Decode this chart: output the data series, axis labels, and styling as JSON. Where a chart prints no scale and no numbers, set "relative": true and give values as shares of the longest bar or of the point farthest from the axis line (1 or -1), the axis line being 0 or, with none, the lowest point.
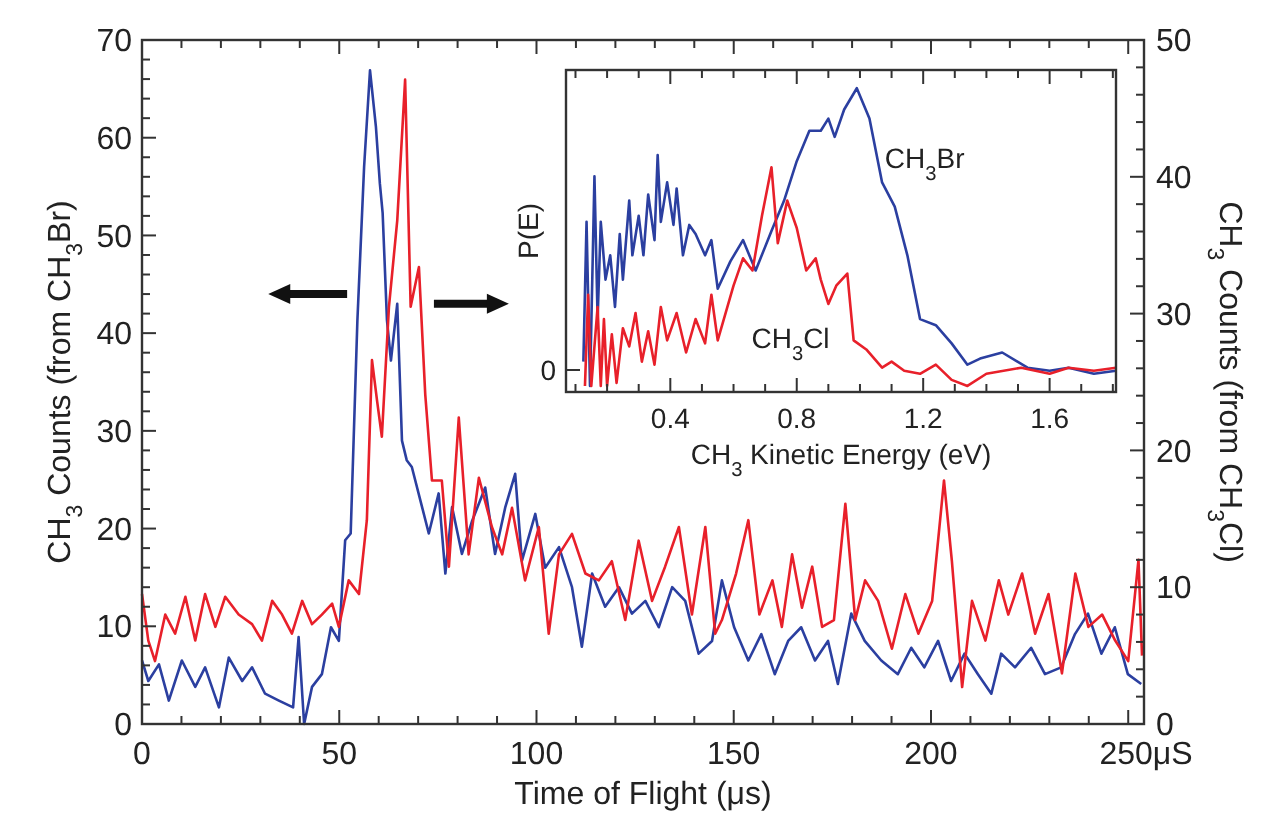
{
  "chart_data": [
    {
      "type": "line",
      "xlabel": "Time of Flight (μs)",
      "ylabel": "CH$_{3}$ Counts (from CH$_{3}$Br)",
      "y2label": "CH$_{3}$ Counts (from CH$_{3}$Cl)",
      "xlim": [
        0,
        254
      ],
      "xticks": [
        0,
        {
          "value": 10,
          "label": null
        },
        {
          "value": 20,
          "label": null
        },
        {
          "value": 30,
          "label": null
        },
        {
          "value": 40,
          "label": null
        },
        50,
        {
          "value": 60,
          "label": null
        },
        {
          "value": 70,
          "label": null
        },
        {
          "value": 80,
          "label": null
        },
        {
          "value": 90,
          "label": null
        },
        100,
        {
          "value": 110,
          "label": null
        },
        {
          "value": 120,
          "label": null
        },
        {
          "value": 130,
          "label": null
        },
        {
          "value": 140,
          "label": null
        },
        150,
        {
          "value": 160,
          "label": null
        },
        {
          "value": 170,
          "label": null
        },
        {
          "value": 180,
          "label": null
        },
        {
          "value": 190,
          "label": null
        },
        200,
        {
          "value": 210,
          "label": null
        },
        {
          "value": 220,
          "label": null
        },
        {
          "value": 230,
          "label": null
        },
        {
          "value": 240,
          "label": null
        },
        {
          "value": 250,
          "label": "250μS"
        }
      ],
      "ylim": [
        0,
        70
      ],
      "yticks": [
        0,
        {
          "value": 2,
          "label": null
        },
        {
          "value": 4,
          "label": null
        },
        {
          "value": 6,
          "label": null
        },
        {
          "value": 8,
          "label": null
        },
        10,
        {
          "value": 12,
          "label": null
        },
        {
          "value": 14,
          "label": null
        },
        {
          "value": 16,
          "label": null
        },
        {
          "value": 18,
          "label": null
        },
        20,
        {
          "value": 22,
          "label": null
        },
        {
          "value": 24,
          "label": null
        },
        {
          "value": 26,
          "label": null
        },
        {
          "value": 28,
          "label": null
        },
        30,
        {
          "value": 32,
          "label": null
        },
        {
          "value": 34,
          "label": null
        },
        {
          "value": 36,
          "label": null
        },
        {
          "value": 38,
          "label": null
        },
        40,
        {
          "value": 42,
          "label": null
        },
        {
          "value": 44,
          "label": null
        },
        {
          "value": 46,
          "label": null
        },
        {
          "value": 48,
          "label": null
        },
        50,
        {
          "value": 52,
          "label": null
        },
        {
          "value": 54,
          "label": null
        },
        {
          "value": 56,
          "label": null
        },
        {
          "value": 58,
          "label": null
        },
        60,
        {
          "value": 62,
          "label": null
        },
        {
          "value": 64,
          "label": null
        },
        {
          "value": 66,
          "label": null
        },
        {
          "value": 68,
          "label": null
        },
        70
      ],
      "y2lim": [
        0,
        50
      ],
      "y2ticks": [
        0,
        {
          "value": 2,
          "label": null
        },
        {
          "value": 4,
          "label": null
        },
        {
          "value": 6,
          "label": null
        },
        {
          "value": 8,
          "label": null
        },
        10,
        {
          "value": 12,
          "label": null
        },
        {
          "value": 14,
          "label": null
        },
        {
          "value": 16,
          "label": null
        },
        {
          "value": 18,
          "label": null
        },
        20,
        {
          "value": 22,
          "label": null
        },
        {
          "value": 24,
          "label": null
        },
        {
          "value": 26,
          "label": null
        },
        {
          "value": 28,
          "label": null
        },
        30,
        {
          "value": 32,
          "label": null
        },
        {
          "value": 34,
          "label": null
        },
        {
          "value": 36,
          "label": null
        },
        {
          "value": 38,
          "label": null
        },
        40,
        {
          "value": 42,
          "label": null
        },
        {
          "value": 44,
          "label": null
        },
        {
          "value": 46,
          "label": null
        },
        {
          "value": 48,
          "label": null
        },
        50
      ],
      "series": [
        {
          "color": "#2b3fa0",
          "x": [
            0,
            1.6,
            4.3,
            6.8,
            10.1,
            13.5,
            16,
            19.5,
            22,
            25.4,
            27.9,
            31.2,
            34.7,
            38.3,
            39.7,
            41.1,
            43.1,
            45.6,
            47.9,
            49.9,
            51.5,
            52.9,
            54.6,
            56.3,
            57.8,
            59.3,
            60.3,
            61,
            62.1,
            63.1,
            64.7,
            65.9,
            67.1,
            68.4,
            71,
            72.7,
            75.2,
            76.9,
            78.6,
            81.1,
            83.7,
            87,
            89.5,
            92.1,
            94.6,
            96.3,
            99.7,
            102.2,
            105.7,
            109,
            111.5,
            114.1,
            117.4,
            120.9,
            124.2,
            127.6,
            131,
            134.4,
            137.7,
            141.1,
            144.5,
            147,
            150.1,
            153.7,
            157,
            160.4,
            163.8,
            167.1,
            170.6,
            173.9,
            176.4,
            179.8,
            183.2,
            187.4,
            191.6,
            195,
            198.3,
            201.8,
            205.1,
            208.5,
            211.9,
            215.3,
            217.8,
            221.3,
            225.4,
            228.9,
            233,
            236.5,
            239.8,
            243.2,
            246.6,
            249.9,
            253.3
          ],
          "values": [
            6.5,
            4.4,
            6.1,
            2.4,
            6.5,
            3.8,
            5.8,
            1.7,
            6.8,
            4.4,
            5.8,
            3.1,
            2.4,
            1.7,
            8.9,
            0,
            3.8,
            5.1,
            9.9,
            8.5,
            18.8,
            19.5,
            41.3,
            57,
            66.9,
            61.1,
            55.3,
            52.3,
            41.3,
            37.2,
            43,
            29,
            27,
            26.3,
            22.2,
            19.5,
            23.6,
            15.4,
            22.2,
            17.4,
            20.8,
            24.2,
            17.4,
            22.2,
            25.6,
            16.7,
            21.5,
            16,
            18.1,
            14,
            7.9,
            15.4,
            12,
            14,
            11.3,
            12.6,
            9.9,
            14,
            12.6,
            7.2,
            8.5,
            14.7,
            9.9,
            6.5,
            9.2,
            5.1,
            8.5,
            9.9,
            6.5,
            8.5,
            4.1,
            11.3,
            8.5,
            6.5,
            5.1,
            7.8,
            5.8,
            8.5,
            4.4,
            7.2,
            5.1,
            3.1,
            7.2,
            5.8,
            7.8,
            5.1,
            5.8,
            9.2,
            11.3,
            7.2,
            9.9,
            5.1,
            4.1
          ]
        },
        {
          "color": "#e8202a",
          "axis": "y2",
          "x": [
            0,
            1.6,
            3.3,
            5.9,
            8.4,
            11,
            13.5,
            16,
            18.6,
            21.1,
            24.5,
            27.9,
            30.4,
            33,
            35.5,
            38,
            40.6,
            43.1,
            45.6,
            48.2,
            49.9,
            52.4,
            55,
            57,
            58.3,
            59.6,
            60.8,
            62.6,
            64.7,
            66.7,
            68.1,
            70.2,
            71.8,
            73.5,
            76,
            77.8,
            80.3,
            82.8,
            85.4,
            88.7,
            91.3,
            93.8,
            97.1,
            100.6,
            103.1,
            105.7,
            109,
            112.4,
            115.8,
            119.1,
            122.5,
            125.9,
            129.3,
            132.6,
            136.1,
            139.4,
            142.8,
            145.3,
            147,
            150.6,
            153.7,
            156.5,
            159.8,
            162.2,
            164.8,
            167.3,
            169.9,
            172.4,
            175.4,
            178.3,
            180.8,
            183.3,
            186.6,
            190.1,
            193.5,
            196.8,
            200.3,
            203.3,
            205.3,
            207.9,
            210.4,
            213.8,
            217.2,
            219.6,
            223.1,
            226.4,
            229.8,
            233.2,
            236.6,
            239.9,
            243.4,
            246.7,
            250,
            252.6,
            253.5
          ],
          "values": [
            9.5,
            6.1,
            4.6,
            8,
            6.6,
            9.3,
            6.1,
            9.5,
            7.1,
            9.3,
            8,
            7.3,
            6.1,
            9,
            8,
            6.6,
            9,
            7.3,
            8,
            8.8,
            7.1,
            10.5,
            9.5,
            14.9,
            26.6,
            23.6,
            21,
            30.5,
            36.8,
            47.1,
            30.5,
            33.4,
            24.1,
            17.8,
            17.8,
            11.5,
            22.4,
            12.4,
            18,
            14.4,
            12.4,
            15.8,
            10.5,
            14.4,
            6.6,
            12.4,
            13.9,
            11,
            10.5,
            11.9,
            7.6,
            13.4,
            9,
            11.5,
            14.4,
            8,
            14.4,
            6.6,
            7.6,
            11,
            14.9,
            8,
            10.5,
            7.1,
            12.4,
            8.5,
            11.5,
            7.1,
            7.6,
            16.1,
            7.6,
            10.5,
            9,
            5.5,
            9.5,
            6.6,
            9,
            17.8,
            11.9,
            2.7,
            9,
            6.1,
            10.5,
            8,
            11,
            6.6,
            9.5,
            3.7,
            11,
            7.1,
            8,
            6.1,
            4.6,
            12,
            5
          ]
        }
      ]
    },
    {
      "type": "line",
      "xlabel": "CH$_{3}$ Kinetic Energy (eV)",
      "ylabel": "P(E)",
      "relative": true,
      "xlim": [
        0.07,
        1.81
      ],
      "xticks": [
        {
          "value": 0.1,
          "label": null
        },
        {
          "value": 0.2,
          "label": null
        },
        {
          "value": 0.3,
          "label": null
        },
        0.4,
        {
          "value": 0.5,
          "label": null
        },
        {
          "value": 0.6,
          "label": null
        },
        {
          "value": 0.7,
          "label": null
        },
        0.8,
        {
          "value": 0.9,
          "label": null
        },
        {
          "value": 1.0,
          "label": null
        },
        {
          "value": 1.1,
          "label": null
        },
        1.2,
        {
          "value": 1.3,
          "label": null
        },
        {
          "value": 1.4,
          "label": null
        },
        {
          "value": 1.5,
          "label": null
        },
        1.6,
        {
          "value": 1.7,
          "label": null
        },
        {
          "value": 1.8,
          "label": null
        }
      ],
      "annotations": [
        "0"
      ],
      "series": [
        {
          "name": "CH$_{3}$Br",
          "color": "#2b3fa0",
          "x": [
            0.125,
            0.135,
            0.146,
            0.16,
            0.17,
            0.18,
            0.195,
            0.21,
            0.225,
            0.24,
            0.25,
            0.27,
            0.28,
            0.3,
            0.315,
            0.33,
            0.35,
            0.36,
            0.37,
            0.39,
            0.41,
            0.42,
            0.44,
            0.46,
            0.48,
            0.51,
            0.53,
            0.55,
            0.59,
            0.63,
            0.67,
            0.72,
            0.76,
            0.8,
            0.84,
            0.876,
            0.9,
            0.92,
            0.95,
            0.99,
            1.03,
            1.07,
            1.11,
            1.15,
            1.19,
            1.24,
            1.29,
            1.34,
            1.38,
            1.45,
            1.53,
            1.6,
            1.66,
            1.74,
            1.81
          ],
          "values": [
            0.1,
            0.56,
            0.02,
            0.71,
            0.24,
            0.56,
            0.37,
            0.45,
            0.28,
            0.52,
            0.37,
            0.63,
            0.45,
            0.58,
            0.45,
            0.65,
            0.5,
            0.78,
            0.56,
            0.69,
            0.55,
            0.67,
            0.45,
            0.55,
            0.52,
            0.45,
            0.5,
            0.34,
            0.43,
            0.5,
            0.4,
            0.53,
            0.63,
            0.76,
            0.86,
            0.86,
            0.9,
            0.84,
            0.93,
            1,
            0.9,
            0.69,
            0.61,
            0.45,
            0.24,
            0.22,
            0.16,
            0.09,
            0.11,
            0.13,
            0.08,
            0.07,
            0.08,
            0.06,
            0.07
          ]
        },
        {
          "name": "CH$_{3}$Cl",
          "color": "#e8202a",
          "x": [
            0.13,
            0.14,
            0.15,
            0.17,
            0.18,
            0.19,
            0.2,
            0.215,
            0.23,
            0.25,
            0.27,
            0.29,
            0.31,
            0.33,
            0.35,
            0.37,
            0.39,
            0.42,
            0.45,
            0.48,
            0.51,
            0.53,
            0.55,
            0.6,
            0.63,
            0.66,
            0.69,
            0.72,
            0.74,
            0.77,
            0.8,
            0.83,
            0.86,
            0.876,
            0.9,
            0.925,
            0.96,
            0.98,
            1.02,
            1.07,
            1.1,
            1.14,
            1.19,
            1.24,
            1.29,
            1.34,
            1.4,
            1.51,
            1.6,
            1.66,
            1.74,
            1.81
          ],
          "values": [
            0.02,
            0.32,
            0.02,
            0.28,
            0.02,
            0.24,
            0.02,
            0.19,
            0.03,
            0.21,
            0.15,
            0.26,
            0.1,
            0.2,
            0.09,
            0.28,
            0.17,
            0.26,
            0.13,
            0.24,
            0.16,
            0.32,
            0.17,
            0.35,
            0.44,
            0.4,
            0.58,
            0.74,
            0.49,
            0.63,
            0.54,
            0.4,
            0.44,
            0.37,
            0.29,
            0.35,
            0.39,
            0.17,
            0.14,
            0.08,
            0.1,
            0.07,
            0.06,
            0.09,
            0.04,
            0.02,
            0.06,
            0.08,
            0.06,
            0.08,
            0.07,
            0.08
          ]
        }
      ]
    }
  ]
}
